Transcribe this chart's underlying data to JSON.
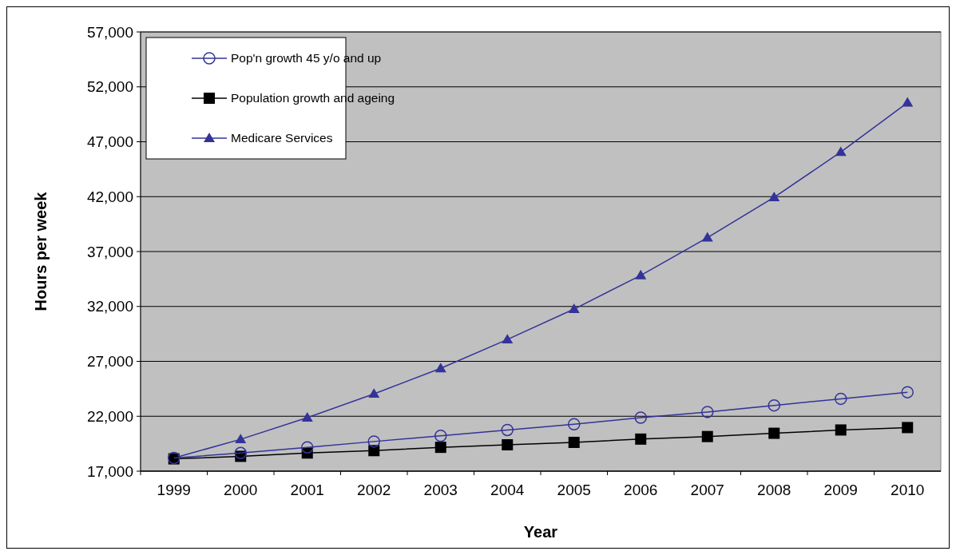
{
  "chart_data": {
    "type": "line",
    "xlabel": "Year",
    "ylabel": "Hours per week",
    "categories": [
      "1999",
      "2000",
      "2001",
      "2002",
      "2003",
      "2004",
      "2005",
      "2006",
      "2007",
      "2008",
      "2009",
      "2010"
    ],
    "series": [
      {
        "name": "Pop'n growth 45 y/o and up",
        "color": "#333399",
        "marker": "circle",
        "values": [
          18200,
          18650,
          19170,
          19700,
          20220,
          20750,
          21270,
          21870,
          22390,
          22990,
          23590,
          24190
        ]
      },
      {
        "name": "Population growth and ageing",
        "color": "#000000",
        "marker": "square",
        "values": [
          18120,
          18350,
          18650,
          18870,
          19170,
          19400,
          19620,
          19920,
          20150,
          20450,
          20750,
          20970
        ]
      },
      {
        "name": "Medicare Services",
        "color": "#333399",
        "marker": "triangle",
        "values": [
          18200,
          19900,
          21870,
          24040,
          26360,
          28990,
          31760,
          34830,
          38270,
          41940,
          46060,
          50560
        ]
      }
    ],
    "ylim": [
      17000,
      57000
    ],
    "yticks": [
      {
        "value": 17000,
        "label": "17,000"
      },
      {
        "value": 22000,
        "label": "22,000"
      },
      {
        "value": 27000,
        "label": "27,000"
      },
      {
        "value": 32000,
        "label": "32,000"
      },
      {
        "value": 37000,
        "label": "37,000"
      },
      {
        "value": 42000,
        "label": "42,000"
      },
      {
        "value": 47000,
        "label": "47,000"
      },
      {
        "value": 52000,
        "label": "52,000"
      },
      {
        "value": 57000,
        "label": "57,000"
      }
    ],
    "grid": "y",
    "legend": "top left",
    "line_style": "solid"
  }
}
